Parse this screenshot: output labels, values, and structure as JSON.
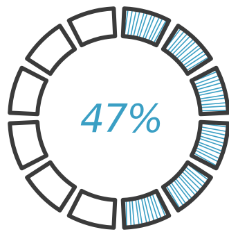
{
  "progress": {
    "label": "47%",
    "value_percent": 47,
    "segments_total": 12,
    "segments_filled": 6
  },
  "colors": {
    "outline": "#3b3b3b",
    "fill_hatch": "#3a9fc4",
    "label": "#3a9fc4",
    "background": "#ffffff"
  }
}
